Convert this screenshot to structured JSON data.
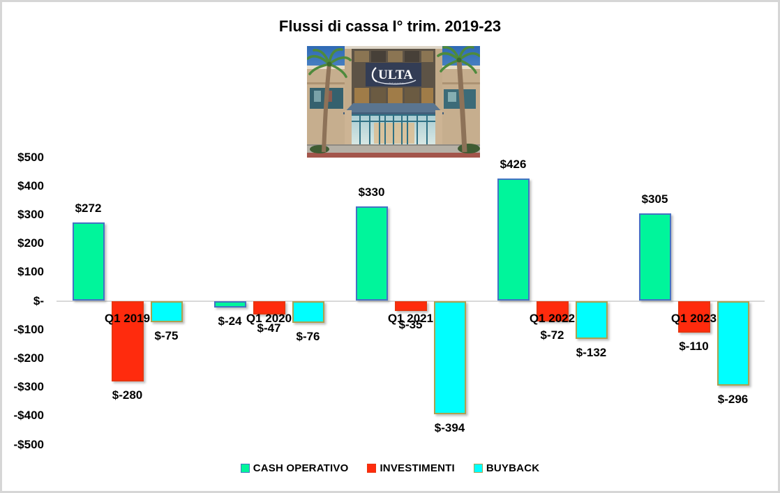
{
  "photo": {
    "sign_text": "ULTA",
    "sign_subtext": "B E A U T Y"
  },
  "chart_data": {
    "type": "bar",
    "title": "Flussi di cassa I° trim. 2019-23",
    "categories": [
      "Q1 2019",
      "Q1 2020",
      "Q1 2021",
      "Q1 2022",
      "Q1 2023"
    ],
    "series": [
      {
        "name": "CASH OPERATIVO",
        "color": "#00F59B",
        "border_color": "#4472C4",
        "values": [
          272,
          -24,
          330,
          426,
          305
        ],
        "labels": [
          "$272",
          "$-24",
          "$330",
          "$426",
          "$305"
        ]
      },
      {
        "name": "INVESTIMENTI",
        "color": "#FF2B0D",
        "border_color": "#E8350F",
        "values": [
          -280,
          -47,
          -35,
          -72,
          -110
        ],
        "labels": [
          "$-280",
          "$-47",
          "$-35",
          "$-72",
          "$-110"
        ]
      },
      {
        "name": "BUYBACK",
        "color": "#00FFFF",
        "border_color": "#ABA14F",
        "values": [
          -75,
          -76,
          -394,
          -132,
          -296
        ],
        "labels": [
          "$-75",
          "$-76",
          "$-394",
          "$-132",
          "$-296"
        ]
      }
    ],
    "y_axis": {
      "ticks": [
        {
          "label": "$500",
          "value": 500
        },
        {
          "label": "$400",
          "value": 400
        },
        {
          "label": "$300",
          "value": 300
        },
        {
          "label": "$200",
          "value": 200
        },
        {
          "label": "$100",
          "value": 100
        },
        {
          "label": "$-",
          "value": 0
        },
        {
          "label": "-$100",
          "value": -100
        },
        {
          "label": "-$200",
          "value": -200
        },
        {
          "label": "-$300",
          "value": -300
        },
        {
          "label": "-$400",
          "value": -400
        },
        {
          "label": "-$500",
          "value": -500
        }
      ],
      "ylim": [
        -500,
        500
      ]
    },
    "xlabel": "",
    "ylabel": "",
    "grid": false,
    "legend_position": "bottom"
  }
}
